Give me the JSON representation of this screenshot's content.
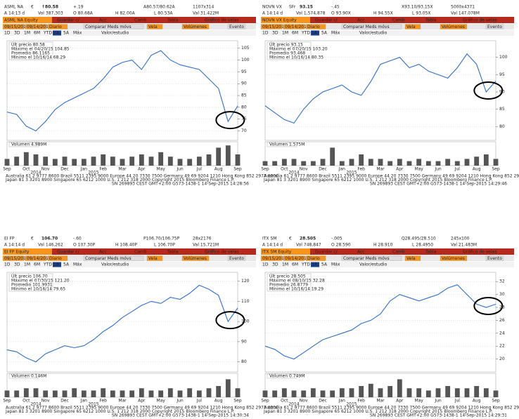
{
  "chart_data": [
    {
      "type": "line",
      "ticker": "ASML NA",
      "currency": "€",
      "price": "↑80.58",
      "price_color": "#1aa64a",
      "change": "+.19",
      "time": "A 14:13 d",
      "header_a": [
        "Vol 387,303",
        "O 80.68A",
        "H 82.00A",
        "L 80.53A",
        "Val 31.422M"
      ],
      "quote": "A80.57/80.62A",
      "size": "1107x314",
      "toolbar": [
        "ASML NA Equity",
        "Guardar c/",
        "Acc",
        "Camb",
        "Tabla",
        "Gráfico de velas"
      ],
      "toolbar2": [
        "09/15/2014",
        "09/14/2015",
        "Diario",
        "Comparar Meds móvs",
        "Vela",
        "Volúmenes",
        "Evento"
      ],
      "toolbar3": [
        "1D",
        "3D",
        "1M",
        "6M",
        "YTD",
        "1A",
        "5A",
        "Máx",
        "Valor/estudio"
      ],
      "legend": [
        "Últ precio 80.58",
        "Máximo el 04/20/15 104.85",
        "Promedio 86.1165",
        "Mínimo el 10/16/14 68.29"
      ],
      "volume_label": "Volumen 4.989M",
      "categories": [
        "Sep",
        null,
        "Oct",
        null,
        "Nov",
        null,
        "Dec",
        null,
        "Jan",
        null,
        "Feb",
        null,
        "Mar",
        null,
        "Apr",
        null,
        "May",
        null,
        "Jun",
        null,
        "Jul",
        null,
        "Aug",
        null,
        "Sep"
      ],
      "years": [
        "2014",
        "2015"
      ],
      "values": [
        78,
        77,
        72,
        70,
        74,
        79,
        82,
        84,
        86,
        88,
        92,
        97,
        99,
        100,
        96,
        102,
        104,
        100,
        98,
        97,
        96,
        92,
        88,
        74,
        80.58
      ],
      "volume": [
        3,
        4,
        6,
        5,
        4,
        3,
        4,
        3,
        3,
        4,
        5,
        4,
        3,
        4,
        5,
        4,
        6,
        4,
        3,
        3,
        4,
        5,
        8,
        9,
        5
      ],
      "vol_ylim": [
        0,
        10
      ],
      "ylim": [
        66,
        107
      ],
      "yticks": [
        70,
        75,
        80,
        85,
        90,
        95,
        100,
        105
      ],
      "color": "#2f6fc8",
      "footer": [
        "Australia 61 2 9777 8600 Brazil 5511 2395 9000 Europe 44 20 7330 7500 Germany 49 69 9204 1210 Hong Kong 852 2977 6000",
        "Japan 81 3 3201 8900     Singapore 65 6212 1000     U.S. 1 212 318 2000     Copyright 2015 Bloomberg Finance L.P.",
        "SN 269893 CEST  GMT+2:00 G573-1438-1 14-Sep-2015 14:28:56"
      ]
    },
    {
      "type": "line",
      "ticker": "NOVN VX",
      "currency": "SFr",
      "price": "93.15",
      "price_color": "#d9261c",
      "change": "-.45",
      "time": "A 14:14 d",
      "header_a": [
        "Vol 1,574,878",
        "O 93.90X",
        "H 94.55X",
        "L 93.05X",
        "Val 147.078M"
      ],
      "quote": "X93.10/93.15X",
      "size": "5000x4371",
      "toolbar": [
        "NOVN VX Equity",
        "Guardar c/",
        "Acc",
        "Camb",
        "Tabla",
        "Gráfico de velas"
      ],
      "toolbar2": [
        "09/15/2014",
        "09/14/2015",
        "Diario",
        "Comparar Meds móvs",
        "Vela",
        "Volúmenes",
        "Evento"
      ],
      "toolbar3": [
        "1D",
        "3D",
        "1M",
        "6M",
        "YTD",
        "1A",
        "5A",
        "Máx",
        "Valor/estudio"
      ],
      "legend": [
        "Últ precio 93.15",
        "Máximo el 07/20/15 103.20",
        "Promedio 93.468",
        "Mínimo el 10/16/14 80.35"
      ],
      "volume_label": "Volumen 1.575M",
      "categories": [
        "Sep",
        null,
        "Oct",
        null,
        "Nov",
        null,
        "Dec",
        null,
        "Jan",
        null,
        "Feb",
        null,
        "Mar",
        null,
        "Apr",
        null,
        "May",
        null,
        "Jun",
        null,
        "Jul",
        null,
        "Aug",
        null,
        "Sep"
      ],
      "years": [
        "2014",
        "2015"
      ],
      "values": [
        86,
        84,
        82,
        81,
        85,
        88,
        90,
        91,
        92,
        90,
        89,
        93,
        98,
        99,
        100,
        97,
        98,
        96,
        95,
        94,
        97,
        101,
        98,
        90,
        93.15
      ],
      "volume": [
        2,
        2,
        3,
        3,
        2,
        2,
        3,
        8,
        2,
        3,
        5,
        3,
        3,
        2,
        3,
        2,
        3,
        2,
        2,
        3,
        2,
        3,
        4,
        5,
        3
      ],
      "vol_ylim": [
        0,
        10
      ],
      "ylim": [
        76,
        104
      ],
      "yticks": [
        80,
        85,
        90,
        95,
        100
      ],
      "color": "#2f6fc8",
      "footer": [
        "Australia 61 2 9777 8600 Brazil 5511 2395 9000 Europe 44 20 7330 7500 Germany 49 69 9204 1210 Hong Kong 852 2977 6000",
        "Japan 81 3 3201 8900     Singapore 65 6212 1000     U.S. 1 212 318 2000     Copyright 2015 Bloomberg Finance L.P.",
        "SN 269893 CEST  GMT+2:00 G573-1438-1 14-Sep-2015 14:29:46"
      ]
    },
    {
      "type": "line",
      "ticker": "EI FP",
      "currency": "€",
      "price": "106.70",
      "price_color": "#d9261c",
      "change": "-.60",
      "time": "A 14:14 d",
      "header_a": [
        "Vol 146,262",
        "O 107.30P",
        "H 108.40P",
        "L 106.70P",
        "Val 15.721M"
      ],
      "quote": "P106.70/106.75P",
      "size": "28x2176",
      "toolbar": [
        "EI FP Equity",
        "Guardar c/",
        "Acc",
        "Camb",
        "Tabla",
        "Gráfico de velas"
      ],
      "toolbar2": [
        "09/15/2014",
        "09/14/2015",
        "Diario",
        "Comparar Meds móvs",
        "Vela",
        "Volúmenes",
        "Evento"
      ],
      "toolbar3": [
        "1D",
        "3D",
        "1M",
        "6M",
        "YTD",
        "1A",
        "5A",
        "Máx",
        "Valor/estudio"
      ],
      "legend": [
        "Últ precio 106.70",
        "Máximo el 07/30/15 121.20",
        "Promedio 101.9931",
        "Mínimo el 10/16/14 79.65"
      ],
      "volume_label": "Volumen 0.146M",
      "categories": [
        "Sep",
        null,
        "Oct",
        null,
        "Nov",
        null,
        "Dec",
        null,
        "Jan",
        null,
        "Feb",
        null,
        "Mar",
        null,
        "Apr",
        null,
        "May",
        null,
        "Jun",
        null,
        "Jul",
        null,
        "Aug",
        null,
        "Sep"
      ],
      "years": [
        "2014",
        "2015"
      ],
      "values": [
        86,
        85,
        82,
        80,
        84,
        86,
        88,
        87,
        88,
        91,
        95,
        98,
        102,
        105,
        108,
        110,
        109,
        112,
        111,
        114,
        118,
        116,
        113,
        100,
        106.7
      ],
      "volume": [
        3,
        3,
        4,
        4,
        3,
        3,
        3,
        4,
        3,
        3,
        4,
        3,
        3,
        3,
        4,
        3,
        3,
        4,
        3,
        4,
        3,
        4,
        5,
        8,
        4
      ],
      "vol_ylim": [
        0,
        10
      ],
      "ylim": [
        75,
        123
      ],
      "yticks": [
        80,
        90,
        100,
        110,
        120
      ],
      "color": "#2f6fc8",
      "footer": [
        "Australia 61 2 9777 8600 Brazil 5511 2395 9000 Europe 44 20 7330 7500 Germany 49 69 9204 1210 Hong Kong 852 2977 6000",
        "Japan 81 3 3201 8900     Singapore 65 6212 1000     U.S. 1 212 318 2000     Copyright 2015 Bloomberg Finance L.P.",
        "SN 269893 CEST  GMT+2:00 G573-1438-1 14-Sep-2015 14:30:34"
      ]
    },
    {
      "type": "line",
      "ticker": "ITX SM",
      "currency": "€",
      "price": "28.505",
      "price_color": "#d9261c",
      "change": "-.005",
      "time": "A 14:14 d",
      "header_a": [
        "Vol 748,847",
        "O 28.590",
        "H 28.910",
        "L 28.4950",
        "Val 21.483M"
      ],
      "quote": "Q28.495/28.510",
      "size": "245x100",
      "toolbar": [
        "ITX SM Equity",
        "Guardar c/",
        "Acc",
        "Camb",
        "Tabla",
        "Gráfico de velas"
      ],
      "toolbar2": [
        "09/15/2014",
        "09/14/2015",
        "Diario",
        "Comparar Meds móvs",
        "Vela",
        "Volúmenes",
        "Evento"
      ],
      "toolbar3": [
        "1D",
        "3D",
        "1M",
        "6M",
        "YTD",
        "1A",
        "5A",
        "Máx",
        "Valor/estudio"
      ],
      "legend": [
        "Últ precio 28.505",
        "Máximo el 08/10/15 32.28",
        "Promedio 26.8779",
        "Mínimo el 10/16/14 19.29"
      ],
      "volume_label": "Volumen 0.749M",
      "categories": [
        "Sep",
        null,
        "Oct",
        null,
        "Nov",
        null,
        "Dec",
        null,
        "Jan",
        null,
        "Feb",
        null,
        "Mar",
        null,
        "Apr",
        null,
        "May",
        null,
        "Jun",
        null,
        "Jul",
        null,
        "Aug",
        null,
        "Sep"
      ],
      "years": [
        "2014",
        "2015"
      ],
      "values": [
        22,
        21.5,
        20.5,
        20,
        21,
        22,
        23,
        23.5,
        24,
        24.5,
        25.5,
        26,
        27,
        29,
        30,
        29.5,
        29,
        29.5,
        30,
        31,
        31.5,
        30,
        28.5,
        28,
        28.505
      ],
      "volume": [
        3,
        3,
        4,
        3,
        3,
        4,
        3,
        3,
        4,
        4,
        5,
        6,
        4,
        5,
        8,
        4,
        4,
        3,
        4,
        5,
        4,
        4,
        5,
        4,
        3
      ],
      "vol_ylim": [
        0,
        10
      ],
      "ylim": [
        18,
        33
      ],
      "yticks": [
        20,
        22,
        24,
        26,
        28,
        30,
        32
      ],
      "color": "#2f6fc8",
      "footer": [
        "Australia 61 2 9777 8600 Brazil 5511 2395 9000 Europe 44 20 7330 7500 Germany 49 69 9204 1210 Hong Kong 852 2977 6000",
        "Japan 81 3 3201 8900     Singapore 65 6212 1000     U.S. 1 212 318 2000     Copyright 2015 Bloomberg Finance L.P.",
        "SN 269893 CEST  GMT+2:00 G573-1438-1 14-Sep-2015 14:29:31"
      ]
    }
  ]
}
